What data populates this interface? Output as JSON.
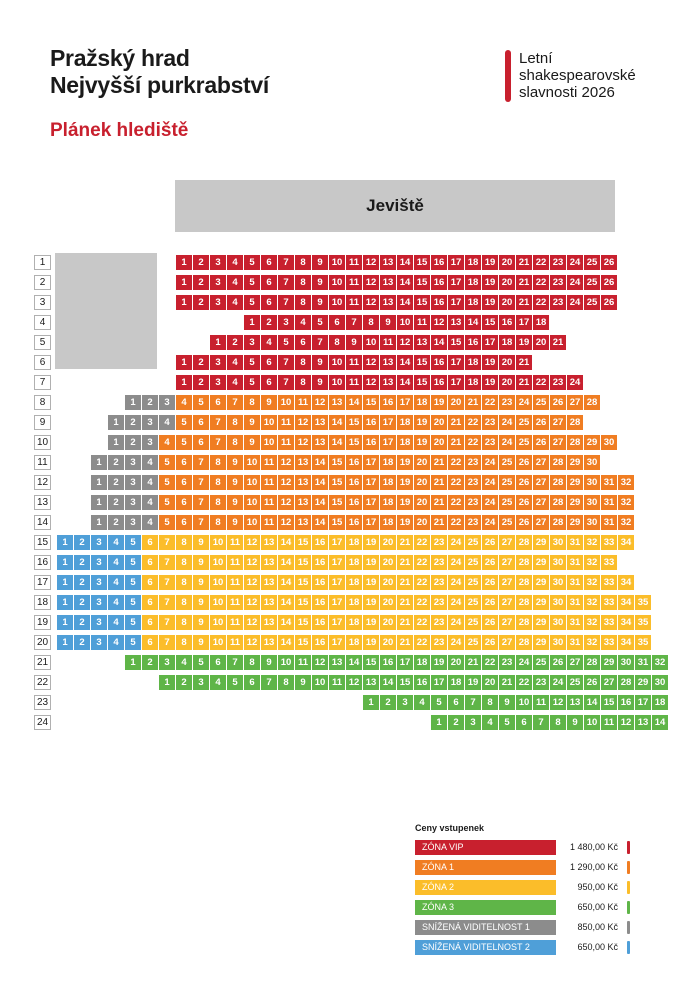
{
  "header": {
    "title_line1": "Pražský hrad",
    "title_line2": "Nejvyšší purkrabství",
    "subtitle": "Plánek hlediště",
    "festival_line1": "Letní",
    "festival_line2": "shakespearovské",
    "festival_line3": "slavnosti 2026"
  },
  "stage_label": "Jeviště",
  "zones": {
    "vip": {
      "color": "#c8202e"
    },
    "z1": {
      "color": "#f07d22"
    },
    "z2": {
      "color": "#fbbd2a"
    },
    "z3": {
      "color": "#5fb548"
    },
    "sv1": {
      "color": "#8c8c8c"
    },
    "sv2": {
      "color": "#4f9fd8"
    }
  },
  "rows": [
    {
      "label": "1",
      "start": 176,
      "segments": [
        [
          "vip",
          1,
          26
        ]
      ]
    },
    {
      "label": "2",
      "start": 176,
      "segments": [
        [
          "vip",
          1,
          26
        ]
      ]
    },
    {
      "label": "3",
      "start": 176,
      "segments": [
        [
          "vip",
          1,
          26
        ]
      ]
    },
    {
      "label": "4",
      "start": 244,
      "segments": [
        [
          "vip",
          1,
          18
        ]
      ]
    },
    {
      "label": "5",
      "start": 210,
      "segments": [
        [
          "vip",
          1,
          21
        ]
      ]
    },
    {
      "label": "6",
      "start": 176,
      "segments": [
        [
          "vip",
          1,
          21
        ]
      ]
    },
    {
      "label": "7",
      "start": 176,
      "segments": [
        [
          "vip",
          1,
          24
        ]
      ]
    },
    {
      "label": "8",
      "start": 125,
      "segments": [
        [
          "sv1",
          1,
          3
        ],
        [
          "z1",
          4,
          28
        ]
      ]
    },
    {
      "label": "9",
      "start": 108,
      "segments": [
        [
          "sv1",
          1,
          4
        ],
        [
          "z1",
          5,
          28
        ]
      ]
    },
    {
      "label": "10",
      "start": 108,
      "segments": [
        [
          "sv1",
          1,
          3
        ],
        [
          "z1",
          4,
          30
        ]
      ]
    },
    {
      "label": "11",
      "start": 91,
      "segments": [
        [
          "sv1",
          1,
          4
        ],
        [
          "z1",
          5,
          30
        ]
      ]
    },
    {
      "label": "12",
      "start": 91,
      "segments": [
        [
          "sv1",
          1,
          4
        ],
        [
          "z1",
          5,
          32
        ]
      ]
    },
    {
      "label": "13",
      "start": 91,
      "segments": [
        [
          "sv1",
          1,
          4
        ],
        [
          "z1",
          5,
          32
        ]
      ]
    },
    {
      "label": "14",
      "start": 91,
      "segments": [
        [
          "sv1",
          1,
          4
        ],
        [
          "z1",
          5,
          32
        ]
      ]
    },
    {
      "label": "15",
      "start": 57,
      "segments": [
        [
          "sv2",
          1,
          5
        ],
        [
          "z2",
          6,
          34
        ]
      ]
    },
    {
      "label": "16",
      "start": 57,
      "segments": [
        [
          "sv2",
          1,
          5
        ],
        [
          "z2",
          6,
          33
        ]
      ]
    },
    {
      "label": "17",
      "start": 57,
      "segments": [
        [
          "sv2",
          1,
          5
        ],
        [
          "z2",
          6,
          34
        ]
      ]
    },
    {
      "label": "18",
      "start": 57,
      "segments": [
        [
          "sv2",
          1,
          5
        ],
        [
          "z2",
          6,
          35
        ]
      ]
    },
    {
      "label": "19",
      "start": 57,
      "segments": [
        [
          "sv2",
          1,
          5
        ],
        [
          "z2",
          6,
          35
        ]
      ]
    },
    {
      "label": "20",
      "start": 57,
      "segments": [
        [
          "sv2",
          1,
          5
        ],
        [
          "z2",
          6,
          35
        ]
      ]
    },
    {
      "label": "21",
      "start": 125,
      "segments": [
        [
          "z3",
          1,
          32
        ]
      ]
    },
    {
      "label": "22",
      "start": 159,
      "segments": [
        [
          "z3",
          1,
          30
        ]
      ]
    },
    {
      "label": "23",
      "start": 363,
      "segments": [
        [
          "z3",
          1,
          18
        ]
      ]
    },
    {
      "label": "24",
      "start": 431,
      "segments": [
        [
          "z3",
          1,
          14
        ]
      ]
    }
  ],
  "legend": {
    "title": "Ceny vstupenek",
    "items": [
      {
        "zone": "vip",
        "label": "ZÓNA VIP",
        "price": "1 480,00 Kč"
      },
      {
        "zone": "z1",
        "label": "ZÓNA 1",
        "price": "1 290,00 Kč"
      },
      {
        "zone": "z2",
        "label": "ZÓNA 2",
        "price": "950,00 Kč"
      },
      {
        "zone": "z3",
        "label": "ZÓNA 3",
        "price": "650,00 Kč"
      },
      {
        "zone": "sv1",
        "label": "SNÍŽENÁ VIDITELNOST 1",
        "price": "850,00 Kč"
      },
      {
        "zone": "sv2",
        "label": "SNÍŽENÁ VIDITELNOST 2",
        "price": "650,00 Kč"
      }
    ]
  }
}
